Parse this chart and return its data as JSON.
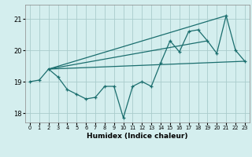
{
  "xlabel": "Humidex (Indice chaleur)",
  "background_color": "#d4eeee",
  "grid_color": "#aacccc",
  "line_color": "#1a6e6e",
  "xlim": [
    -0.5,
    23.5
  ],
  "ylim": [
    17.7,
    21.45
  ],
  "yticks": [
    18,
    19,
    20,
    21
  ],
  "xticks": [
    0,
    1,
    2,
    3,
    4,
    5,
    6,
    7,
    8,
    9,
    10,
    11,
    12,
    13,
    14,
    15,
    16,
    17,
    18,
    19,
    20,
    21,
    22,
    23
  ],
  "line1_x": [
    0,
    1,
    2,
    3,
    4,
    5,
    6,
    7,
    8,
    9,
    10,
    11,
    12,
    13,
    14,
    15,
    16,
    17,
    18,
    19,
    20,
    21,
    22,
    23
  ],
  "line1_y": [
    19.0,
    19.05,
    19.4,
    19.15,
    18.75,
    18.6,
    18.45,
    18.5,
    18.85,
    18.85,
    17.85,
    18.85,
    19.0,
    18.85,
    19.6,
    20.3,
    19.95,
    20.6,
    20.65,
    20.3,
    19.9,
    21.1,
    20.0,
    19.65
  ],
  "line2_x": [
    2,
    21
  ],
  "line2_y": [
    19.4,
    21.1
  ],
  "line3_x": [
    2,
    23
  ],
  "line3_y": [
    19.4,
    19.65
  ],
  "line4_x": [
    2,
    19
  ],
  "line4_y": [
    19.4,
    20.3
  ]
}
